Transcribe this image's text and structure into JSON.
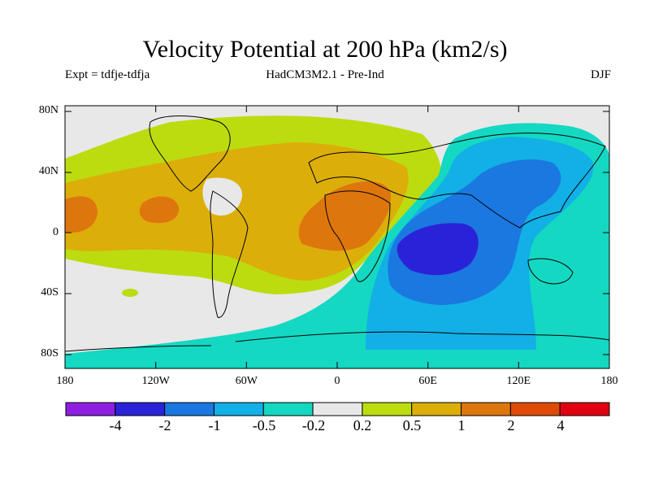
{
  "title": "Velocity Potential at 200 hPa (km2/s)",
  "subtitle_left": "Expt = tdfje-tdfja",
  "subtitle_center": "HadCM3M2.1 - Pre-Ind",
  "subtitle_right": "DJF",
  "map": {
    "y_tick_labels": [
      "80N",
      "40N",
      "0",
      "40S",
      "80S"
    ],
    "x_tick_labels": [
      "180",
      "120W",
      "60W",
      "0",
      "60E",
      "120E",
      "180"
    ]
  },
  "colorbar": {
    "colors": [
      "#8e1fe0",
      "#2a22d8",
      "#1a78e0",
      "#12b0e6",
      "#14d8c2",
      "#e8e8e8",
      "#bcdc10",
      "#dcae0a",
      "#de760e",
      "#e04a08",
      "#e00012"
    ],
    "labels": [
      "-4",
      "-2",
      "-1",
      "-0.5",
      "-0.2",
      "0.2",
      "0.5",
      "1",
      "2",
      "4"
    ]
  }
}
